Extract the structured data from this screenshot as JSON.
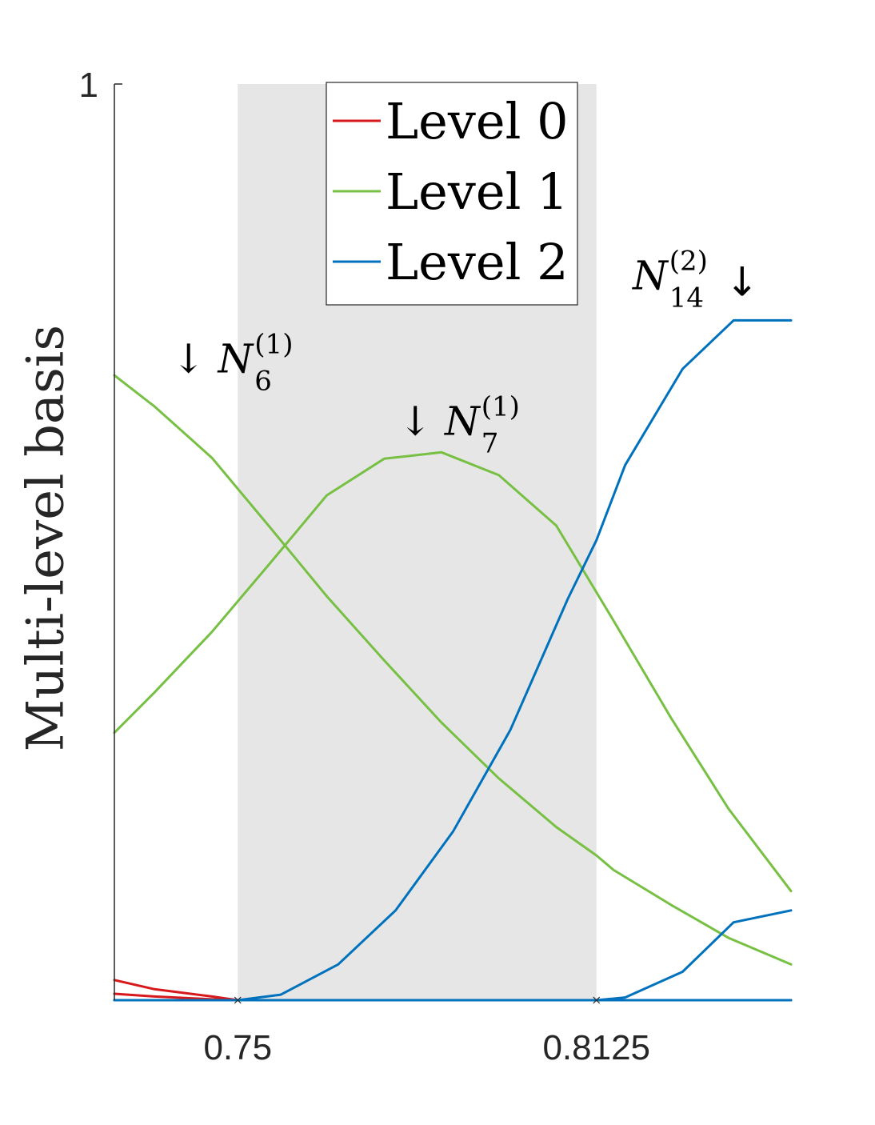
{
  "chart_data": {
    "type": "line",
    "ylabel": "Multi-level basis",
    "xlim": [
      0.7285,
      0.8464
    ],
    "ylim": [
      0,
      1
    ],
    "xticks": [
      {
        "value": 0.75,
        "label": "0.75"
      },
      {
        "value": 0.8125,
        "label": "0.8125"
      }
    ],
    "yticks": [
      {
        "value": 1,
        "label": "1"
      }
    ],
    "highlight_region": {
      "x": [
        0.75,
        0.8125
      ],
      "color": "#e6e6e6"
    },
    "legend": {
      "position": "top-center",
      "entries": [
        {
          "label": "Level 0",
          "color": "#d7191c"
        },
        {
          "label": "Level 1",
          "color": "#77c043"
        },
        {
          "label": "Level 2",
          "color": "#0072bd"
        }
      ]
    },
    "series": [
      {
        "level": 0,
        "color": "#d7191c",
        "x": [
          0.7285,
          0.7355,
          0.7455,
          0.75
        ],
        "y": [
          0.022,
          0.012,
          0.004,
          0.0
        ]
      },
      {
        "level": 0,
        "color": "#d7191c",
        "x": [
          0.7285,
          0.7355,
          0.7455,
          0.75
        ],
        "y": [
          0.007,
          0.004,
          0.001,
          0.0
        ]
      },
      {
        "level": 0,
        "color": "#d7191c",
        "x": [
          0.7285,
          0.8464
        ],
        "y": [
          0.0,
          0.0
        ]
      },
      {
        "level": 1,
        "color": "#77c043",
        "x": [
          0.7285,
          0.7355,
          0.7455,
          0.7555,
          0.7655,
          0.7755,
          0.7855,
          0.7955,
          0.8055,
          0.8125,
          0.8155,
          0.8255,
          0.8355,
          0.8464
        ],
        "y": [
          0.682,
          0.648,
          0.592,
          0.517,
          0.441,
          0.371,
          0.303,
          0.242,
          0.189,
          0.158,
          0.142,
          0.104,
          0.068,
          0.039
        ]
      },
      {
        "level": 1,
        "color": "#77c043",
        "x": [
          0.7285,
          0.7355,
          0.7455,
          0.7555,
          0.7655,
          0.7755,
          0.7855,
          0.7955,
          0.8055,
          0.8155,
          0.8255,
          0.8355,
          0.8464
        ],
        "y": [
          0.292,
          0.336,
          0.402,
          0.476,
          0.551,
          0.591,
          0.598,
          0.573,
          0.518,
          0.414,
          0.308,
          0.209,
          0.119
        ]
      },
      {
        "level": 2,
        "color": "#0072bd",
        "x": [
          0.75,
          0.7575,
          0.7675,
          0.7775,
          0.7875,
          0.7975,
          0.8075,
          0.8125,
          0.8175,
          0.8275,
          0.8364,
          0.8464
        ],
        "y": [
          0.0,
          0.006,
          0.039,
          0.098,
          0.184,
          0.295,
          0.438,
          0.502,
          0.584,
          0.689,
          0.742,
          0.742
        ]
      },
      {
        "level": 2,
        "color": "#0072bd",
        "x": [
          0.7285,
          0.8125,
          0.8175,
          0.8275,
          0.8364,
          0.8464
        ],
        "y": [
          0.0,
          0.0,
          0.003,
          0.031,
          0.085,
          0.098
        ]
      },
      {
        "level": 2,
        "color": "#0072bd",
        "x": [
          0.7285,
          0.8464
        ],
        "y": [
          0.0,
          0.0
        ]
      }
    ],
    "annotations": [
      {
        "text": "↓ N",
        "sub": "6",
        "sup": "(1)",
        "x": 0.7385,
        "y": 0.685
      },
      {
        "text": "↓ N",
        "sub": "7",
        "sup": "(1)",
        "x": 0.778,
        "y": 0.617
      },
      {
        "text": "N",
        "sub": "14",
        "sup": "(2)",
        "arrow_after": "↓",
        "x": 0.8188,
        "y": 0.776
      }
    ]
  }
}
